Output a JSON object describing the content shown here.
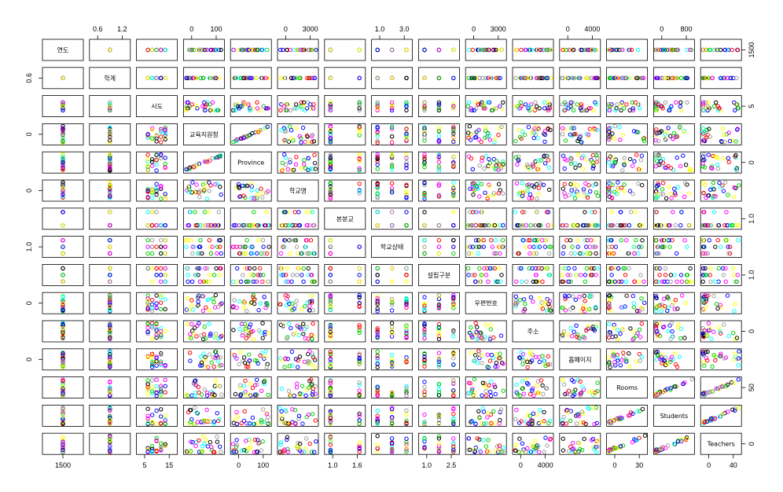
{
  "chart_data": {
    "type": "scatter",
    "subtype": "pairs-matrix",
    "variables": [
      "연도",
      "학계",
      "시도",
      "교육지원청",
      "Province",
      "학교명",
      "본분교",
      "학교상태",
      "설립구분",
      "우편번호",
      "주소",
      "홈페이지",
      "Rooms",
      "Students",
      "Teachers"
    ],
    "axis_ticks": {
      "top": [
        {
          "var": 1,
          "labels": [
            "0.6",
            "1.2"
          ]
        },
        {
          "var": 3,
          "labels": [
            "0",
            "100"
          ]
        },
        {
          "var": 5,
          "labels": [
            "0",
            "3000"
          ]
        },
        {
          "var": 7,
          "labels": [
            "1.0",
            "3.0"
          ]
        },
        {
          "var": 9,
          "labels": [
            "0",
            "3000"
          ]
        },
        {
          "var": 11,
          "labels": [
            "0",
            "4000"
          ]
        },
        {
          "var": 13,
          "labels": [
            "0",
            "800"
          ]
        }
      ],
      "bottom": [
        {
          "var": 0,
          "labels": [
            "1500"
          ]
        },
        {
          "var": 2,
          "labels": [
            "5",
            "15"
          ]
        },
        {
          "var": 4,
          "labels": [
            "0",
            "100"
          ]
        },
        {
          "var": 6,
          "labels": [
            "1.0",
            "1.6"
          ]
        },
        {
          "var": 8,
          "labels": [
            "1.0",
            "2.5"
          ]
        },
        {
          "var": 10,
          "labels": [
            "0",
            "4000"
          ]
        },
        {
          "var": 12,
          "labels": [
            "0",
            "30"
          ]
        },
        {
          "var": 14,
          "labels": [
            "0",
            "40"
          ]
        }
      ],
      "left": [
        {
          "var": 1,
          "labels": [
            "0.6"
          ]
        },
        {
          "var": 3,
          "labels": [
            "0"
          ]
        },
        {
          "var": 5,
          "labels": [
            "0"
          ]
        },
        {
          "var": 7,
          "labels": [
            "1.0"
          ]
        },
        {
          "var": 9,
          "labels": [
            "0"
          ]
        },
        {
          "var": 11,
          "labels": [
            "0"
          ]
        },
        {
          "var": 13,
          "labels": []
        }
      ],
      "right": [
        {
          "var": 0,
          "labels": [
            "1500"
          ]
        },
        {
          "var": 2,
          "labels": [
            "5"
          ]
        },
        {
          "var": 4,
          "labels": [
            "0"
          ]
        },
        {
          "var": 6,
          "labels": [
            "1.0"
          ]
        },
        {
          "var": 8,
          "labels": [
            "1.0"
          ]
        },
        {
          "var": 10,
          "labels": [
            "0"
          ]
        },
        {
          "var": 12,
          "labels": [
            "50"
          ]
        },
        {
          "var": 14,
          "labels": [
            "0"
          ]
        }
      ]
    },
    "point_colors": [
      "#0000ff",
      "#ffff00",
      "#000000",
      "#00ffff",
      "#ff0000",
      "#00cd00",
      "#ff00ff",
      "#9e9e9e"
    ],
    "point_symbol": "open-circle",
    "grid": false,
    "legend": "none"
  }
}
